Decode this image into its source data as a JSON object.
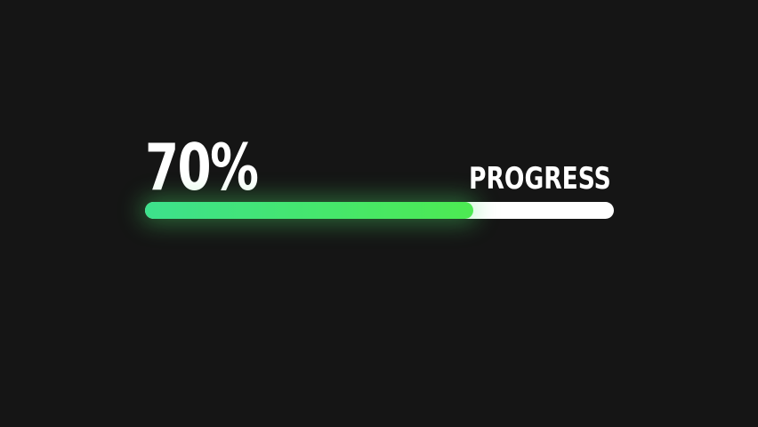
{
  "scene": {
    "percent_label": "70%",
    "progress_label": "PROGRESS",
    "progress_value": 70
  },
  "colors": {
    "background": "#151515",
    "track": "#ffffff",
    "fill-start": "#3de18c",
    "fill-end": "#4dea52",
    "glow": "rgba(77, 230, 110, 0.40)",
    "text": "#ffffff"
  }
}
